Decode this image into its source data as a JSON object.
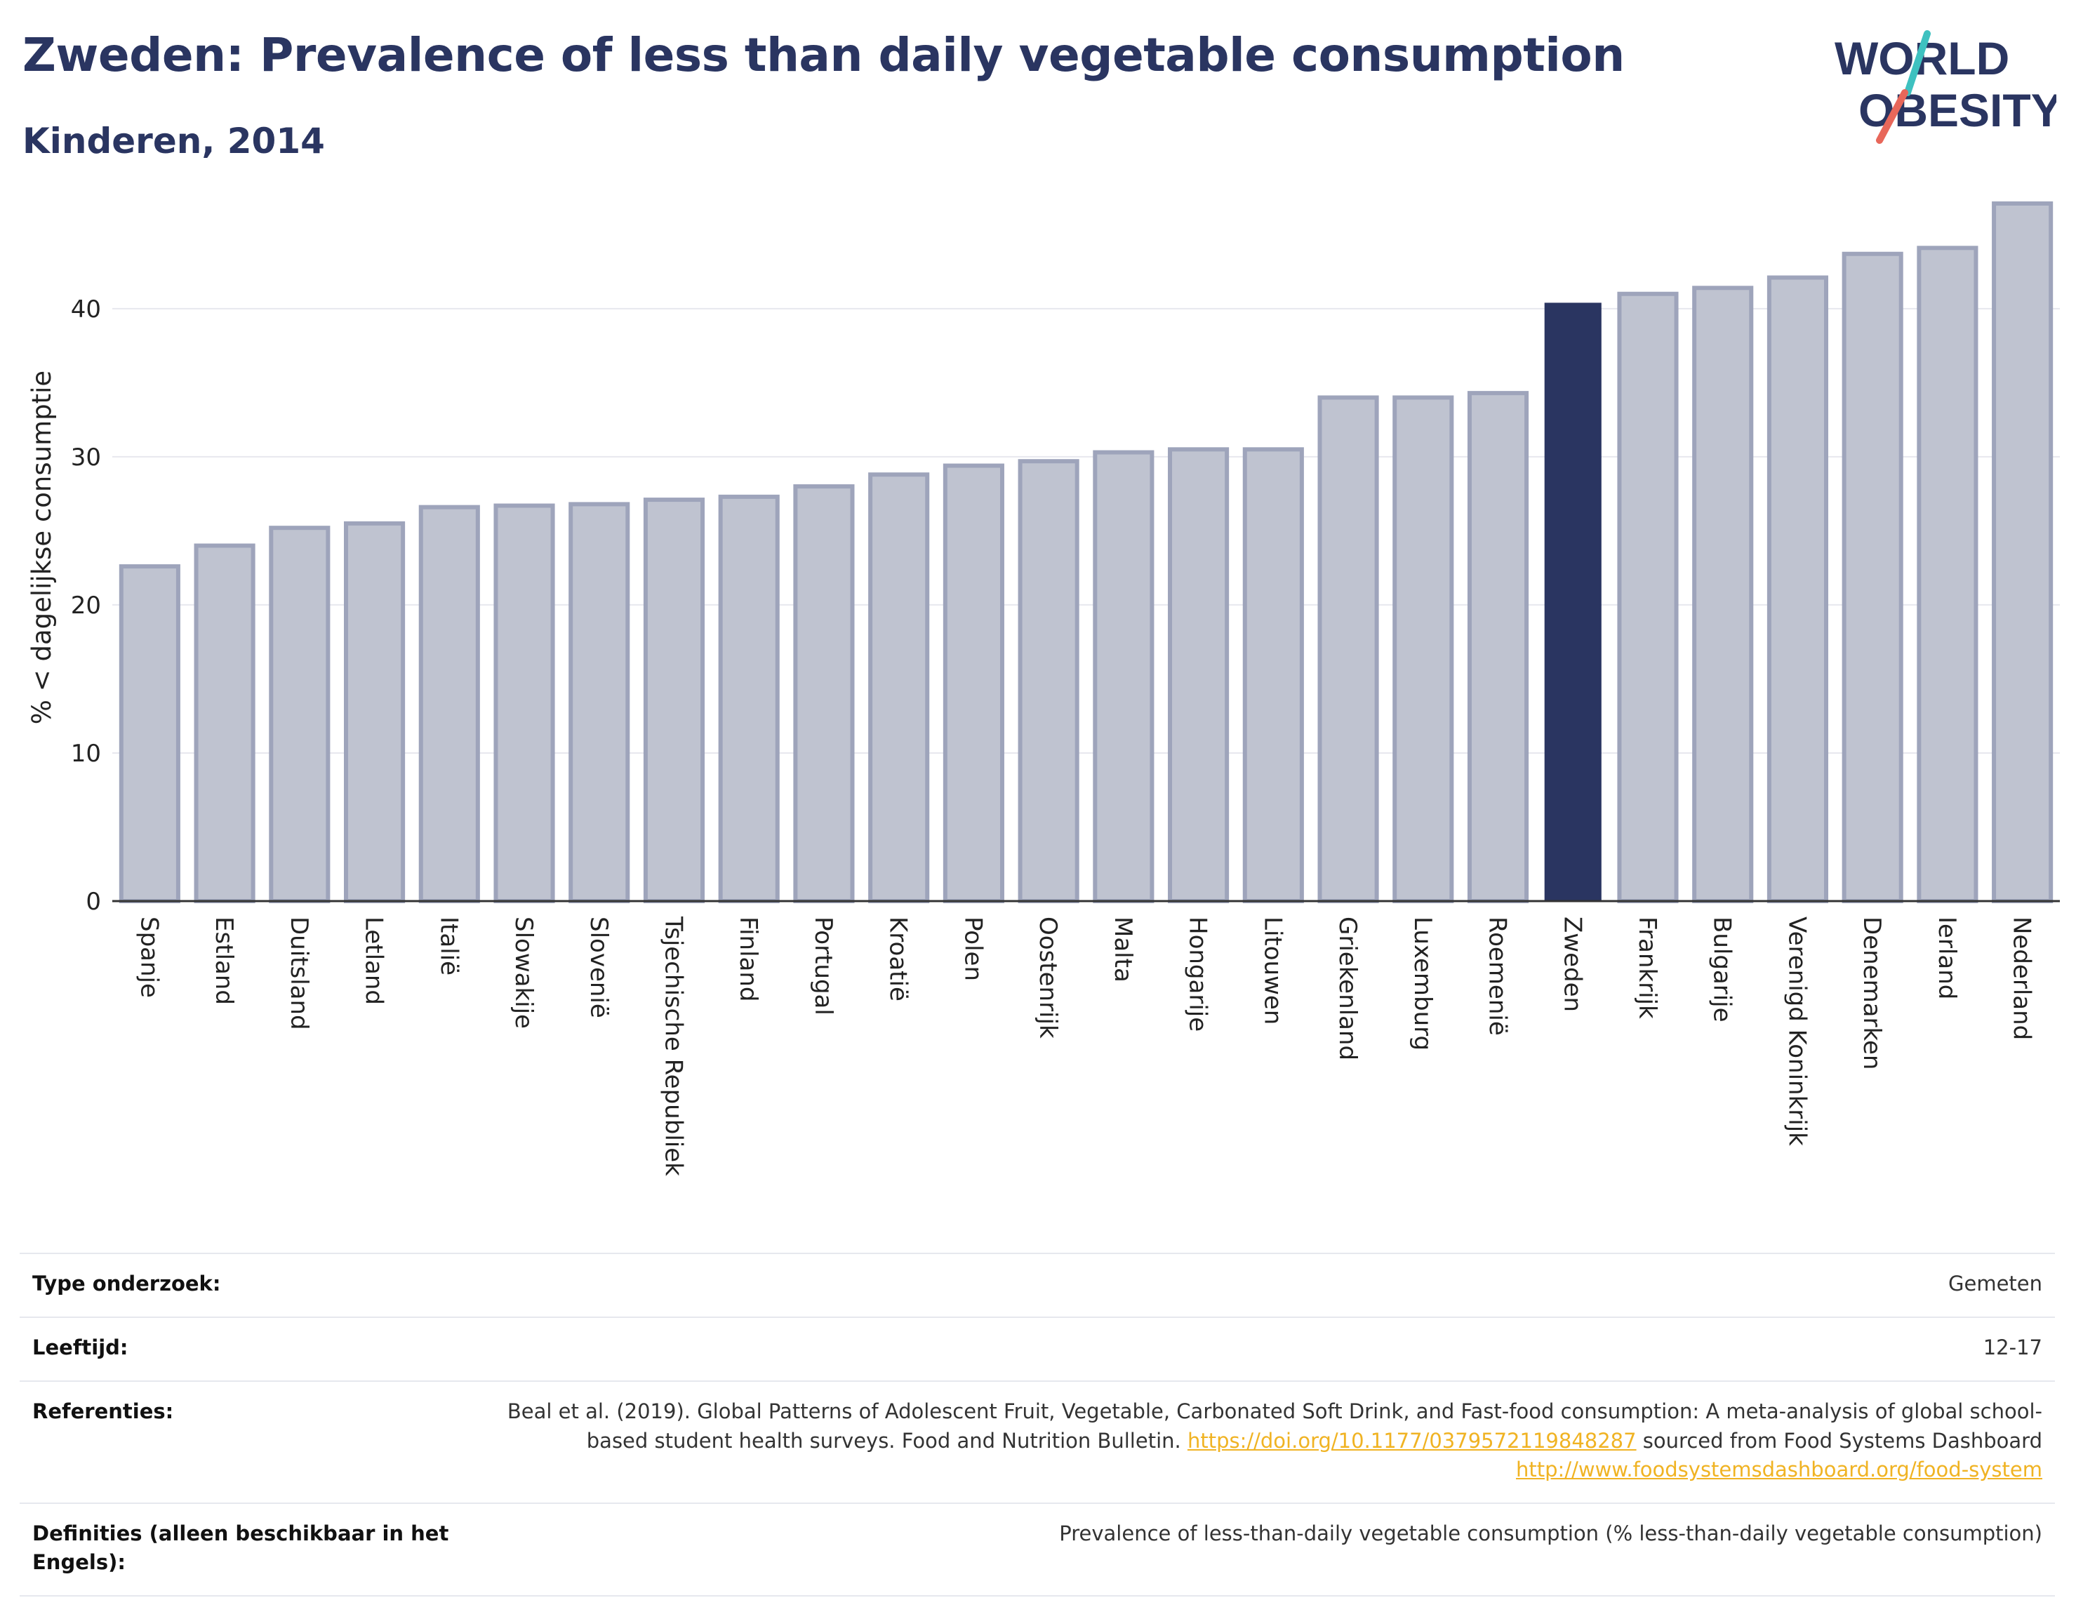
{
  "header": {
    "title": "Zweden: Prevalence of less than daily vegetable consumption",
    "subtitle": "Kinderen, 2014"
  },
  "logo": {
    "line1": "WORLD",
    "line2": "OBESITY"
  },
  "colors": {
    "bar": "#bfc3d0",
    "bar_border": "#9ea4bb",
    "highlight": "#2a3561",
    "grid": "#e7e8ee",
    "link": "#f0b323"
  },
  "chart_data": {
    "type": "bar",
    "title": "Zweden: Prevalence of less than daily vegetable consumption",
    "subtitle": "Kinderen, 2014",
    "xlabel": "",
    "ylabel": "% < dagelijkse consumptie",
    "ylim": [
      0,
      48
    ],
    "yticks": [
      0,
      10,
      20,
      30,
      40
    ],
    "grid": true,
    "highlight": "Zweden",
    "categories": [
      "Spanje",
      "Estland",
      "Duitsland",
      "Letland",
      "Italië",
      "Slowakije",
      "Slovenië",
      "Tsjechische Republiek",
      "Finland",
      "Portugal",
      "Kroatië",
      "Polen",
      "Oostenrijk",
      "Malta",
      "Hongarije",
      "Litouwen",
      "Griekenland",
      "Luxemburg",
      "Roemenië",
      "Zweden",
      "Frankrijk",
      "Bulgarije",
      "Verenigd Koninkrijk",
      "Denemarken",
      "Ierland",
      "Nederland"
    ],
    "values": [
      22.6,
      24.0,
      25.2,
      25.5,
      26.6,
      26.7,
      26.8,
      27.1,
      27.3,
      28.0,
      28.8,
      29.4,
      29.7,
      30.3,
      30.5,
      30.5,
      34.0,
      34.0,
      34.3,
      40.4,
      41.0,
      41.4,
      42.1,
      43.7,
      44.1,
      47.1
    ]
  },
  "info": {
    "type_label": "Type onderzoek:",
    "type_value": "Gemeten",
    "age_label": "Leeftijd:",
    "age_value": "12-17",
    "ref_label": "Referenties:",
    "ref_text1": "Beal et al. (2019). Global Patterns of Adolescent Fruit, Vegetable, Carbonated Soft Drink, and Fast-food consumption: A meta-analysis of global school-based student health surveys. Food and Nutrition Bulletin. ",
    "ref_link1": "https://doi.org/10.1177/0379572119848287",
    "ref_text2": " sourced from Food Systems Dashboard ",
    "ref_link2": "http://www.foodsystemsdashboard.org/food-system",
    "def_label": "Definities (alleen beschikbaar in het Engels):",
    "def_value": "Prevalence of less-than-daily vegetable consumption (% less-than-daily vegetable consumption)"
  }
}
